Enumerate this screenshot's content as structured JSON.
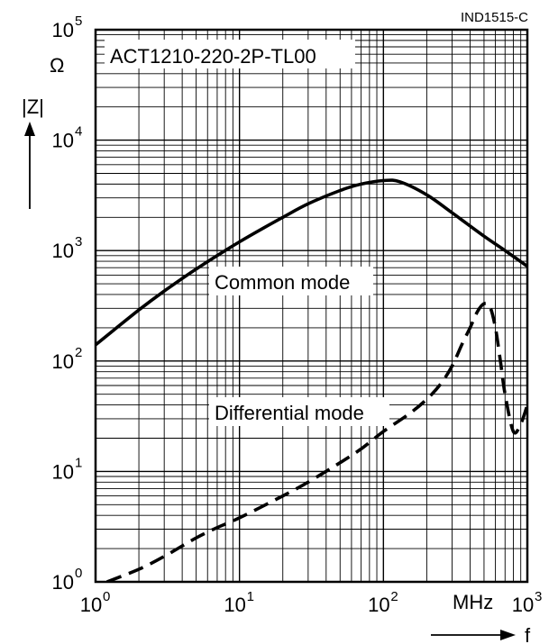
{
  "chart_data": {
    "type": "line",
    "title": "ACT1210-220-2P-TL00",
    "figure_code": "IND1515-C",
    "x_scale": "log",
    "y_scale": "log",
    "xlim": [
      1,
      1000
    ],
    "ylim": [
      1,
      100000
    ],
    "xlabel": "f",
    "xunit": "MHz",
    "ylabel": "|Z|",
    "yunit": "Ω",
    "grid": true,
    "x_ticks": [
      {
        "base": "10",
        "exp": "0",
        "value": 1
      },
      {
        "base": "10",
        "exp": "1",
        "value": 10
      },
      {
        "base": "10",
        "exp": "2",
        "value": 100
      },
      {
        "base": "10",
        "exp": "3",
        "value": 1000
      }
    ],
    "y_ticks": [
      {
        "base": "10",
        "exp": "0",
        "value": 1
      },
      {
        "base": "10",
        "exp": "1",
        "value": 10
      },
      {
        "base": "10",
        "exp": "2",
        "value": 100
      },
      {
        "base": "10",
        "exp": "3",
        "value": 1000
      },
      {
        "base": "10",
        "exp": "4",
        "value": 10000
      },
      {
        "base": "10",
        "exp": "5",
        "value": 100000
      }
    ],
    "series": [
      {
        "name": "Common mode",
        "style": "solid",
        "x": [
          1,
          2,
          3,
          5,
          10,
          20,
          30,
          50,
          70,
          100,
          130,
          200,
          300,
          500,
          700,
          1000
        ],
        "y": [
          140,
          290,
          430,
          680,
          1200,
          2000,
          2650,
          3500,
          4000,
          4300,
          4200,
          3200,
          2200,
          1350,
          1000,
          720
        ]
      },
      {
        "name": "Differential mode",
        "style": "dashed",
        "x": [
          1.2,
          2,
          3,
          5,
          7,
          10,
          20,
          30,
          50,
          70,
          100,
          150,
          200,
          250,
          300,
          350,
          400,
          450,
          500,
          550,
          600,
          650,
          700,
          800,
          900,
          1000
        ],
        "y": [
          1,
          1.3,
          1.7,
          2.5,
          3.1,
          3.8,
          6,
          8,
          12,
          16,
          23,
          33,
          45,
          62,
          90,
          140,
          200,
          280,
          330,
          310,
          200,
          100,
          50,
          23,
          27,
          40
        ]
      }
    ]
  }
}
